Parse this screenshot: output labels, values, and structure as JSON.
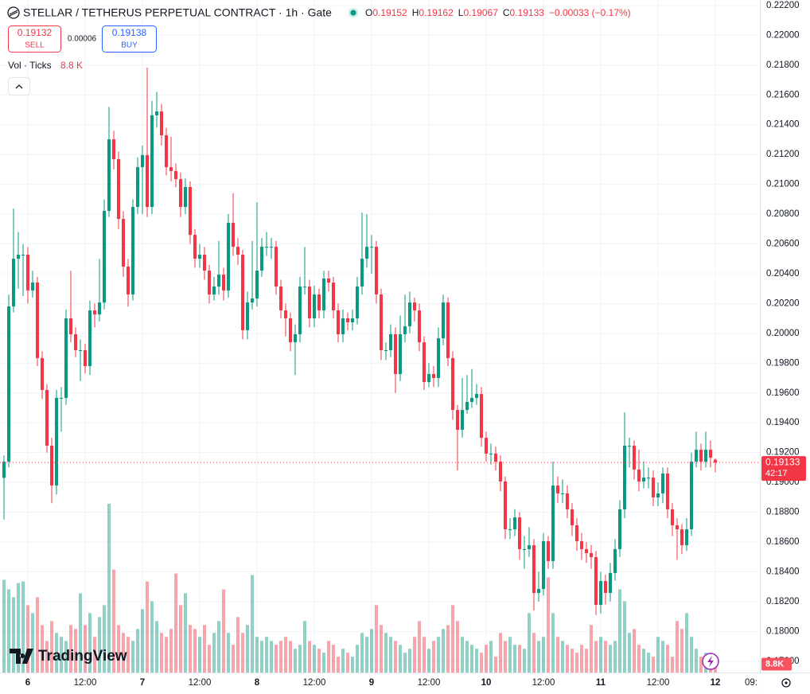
{
  "header": {
    "symbol": "STELLAR / TETHERUS PERPETUAL CONTRACT · 1h · Gate",
    "ohlc": [
      {
        "key": "O",
        "value": "0.19152"
      },
      {
        "key": "H",
        "value": "0.19162"
      },
      {
        "key": "L",
        "value": "0.19067"
      },
      {
        "key": "C",
        "value": "0.19133"
      }
    ],
    "change": "−0.00033 (−0.17%)"
  },
  "trade": {
    "sell_price": "0.19132",
    "sell_label": "SELL",
    "spread": "0.00006",
    "buy_price": "0.19138",
    "buy_label": "BUY"
  },
  "volume_legend": {
    "label": "Vol · Ticks",
    "value": "8.8 K"
  },
  "branding": "TradingView",
  "chart_data": {
    "type": "candlestick",
    "categories": [
      null,
      null,
      null,
      null,
      null,
      "6",
      null,
      null,
      null,
      null,
      null,
      null,
      null,
      null,
      null,
      null,
      null,
      "12:00",
      null,
      null,
      null,
      null,
      null,
      null,
      null,
      null,
      null,
      null,
      null,
      "7",
      null,
      null,
      null,
      null,
      null,
      null,
      null,
      null,
      null,
      null,
      null,
      "12:00",
      null,
      null,
      null,
      null,
      null,
      null,
      null,
      null,
      null,
      null,
      null,
      "8",
      null,
      null,
      null,
      null,
      null,
      null,
      null,
      null,
      null,
      null,
      null,
      "12:00",
      null,
      null,
      null,
      null,
      null,
      null,
      null,
      null,
      null,
      null,
      null,
      "9",
      null,
      null,
      null,
      null,
      null,
      null,
      null,
      null,
      null,
      null,
      null,
      "12:00",
      null,
      null,
      null,
      null,
      null,
      null,
      null,
      null,
      null,
      null,
      null,
      "10",
      null,
      null,
      null,
      null,
      null,
      null,
      null,
      null,
      null,
      null,
      null,
      "12:00",
      null,
      null,
      null,
      null,
      null,
      null,
      null,
      null,
      null,
      null,
      null,
      "11",
      null,
      null,
      null,
      null,
      null,
      null,
      null,
      null,
      null,
      null,
      null,
      "12:00",
      null,
      null,
      null,
      null,
      null,
      null,
      null,
      null,
      null,
      null,
      null,
      "12"
    ],
    "open": [
      0.1903,
      0.19139,
      0.20181,
      0.20501,
      0.20528,
      0.20528,
      0.20288,
      0.20341,
      0.19834,
      0.1962,
      0.19246,
      0.18979,
      0.19567,
      0.19567,
      0.20101,
      0.19994,
      0.19887,
      0.19887,
      0.1978,
      0.20154,
      0.20127,
      0.20207,
      0.20822,
      0.21302,
      0.21169,
      0.20768,
      0.20448,
      0.20261,
      0.20848,
      0.21115,
      0.21196,
      0.20848,
      0.21463,
      0.21489,
      0.21329,
      0.21115,
      0.21089,
      0.21035,
      0.20848,
      0.20982,
      0.20661,
      0.20501,
      0.20528,
      0.20421,
      0.20261,
      0.20314,
      0.20394,
      0.20288,
      0.20742,
      0.20581,
      0.20528,
      0.20021,
      0.20207,
      0.20234,
      0.20421,
      0.20581,
      0.20581,
      0.20581,
      0.20314,
      0.20154,
      0.20101,
      0.1994,
      0.19994,
      0.20314,
      0.20314,
      0.20101,
      0.20261,
      0.20154,
      0.20368,
      0.20341,
      0.20154,
      0.19994,
      0.20101,
      0.20074,
      0.20101,
      0.20314,
      0.20501,
      0.20581,
      0.20581,
      0.20261,
      0.19887,
      0.19887,
      0.19994,
      0.19727,
      0.19994,
      0.20047,
      0.20207,
      0.20154,
      0.1994,
      0.19673,
      0.19727,
      0.197,
      0.19967,
      0.20207,
      0.19834,
      0.19486,
      0.19353,
      0.19486,
      0.1954,
      0.19567,
      0.19593,
      0.19299,
      0.19193,
      0.19193,
      0.19139,
      0.19006,
      0.18685,
      0.18685,
      0.18765,
      0.18552,
      0.18552,
      0.18578,
      0.18258,
      0.18285,
      0.18605,
      0.18472,
      0.18979,
      0.18926,
      0.18926,
      0.18819,
      0.18712,
      0.18605,
      0.18552,
      0.18525,
      0.18498,
      0.18178,
      0.18338,
      0.18258,
      0.18392,
      0.18552,
      0.18819,
      0.19246,
      0.19246,
      0.19086,
      0.19006,
      0.19032,
      0.19032,
      0.18899,
      0.18926,
      0.19059,
      0.18819,
      0.18712,
      0.18685,
      0.18578,
      0.18685,
      0.19139,
      0.19219,
      0.19139,
      0.19219,
      0.19152
    ],
    "high": [
      0.1918,
      0.2026,
      0.20838,
      0.2068,
      0.206,
      0.2058,
      0.2042,
      0.2038,
      0.1988,
      0.1966,
      0.193,
      0.1962,
      0.1964,
      0.2016,
      0.2042,
      0.2004,
      0.1996,
      0.1993,
      0.2022,
      0.202,
      0.205,
      0.209,
      0.2152,
      0.2136,
      0.2122,
      0.2082,
      0.205,
      0.209,
      0.2118,
      0.2126,
      0.21783,
      0.2156,
      0.2162,
      0.2154,
      0.2138,
      0.2132,
      0.2114,
      0.2108,
      0.2104,
      0.2102,
      0.207,
      0.206,
      0.2058,
      0.2046,
      0.2038,
      0.2062,
      0.2044,
      0.208,
      0.2094,
      0.2064,
      0.2056,
      0.2028,
      0.2062,
      0.2088,
      0.2064,
      0.2068,
      0.2064,
      0.2062,
      0.2036,
      0.202,
      0.2014,
      0.2006,
      0.2038,
      0.2058,
      0.2036,
      0.2032,
      0.203,
      0.2042,
      0.2042,
      0.2038,
      0.202,
      0.2016,
      0.2014,
      0.2016,
      0.2038,
      0.2081,
      0.208,
      0.2066,
      0.2062,
      0.203,
      0.1994,
      0.2006,
      0.2004,
      0.2012,
      0.2026,
      0.2028,
      0.2024,
      0.202,
      0.1998,
      0.198,
      0.1978,
      0.2004,
      0.2026,
      0.2024,
      0.1988,
      0.1952,
      0.197,
      0.1972,
      0.1976,
      0.1966,
      0.1964,
      0.1934,
      0.1926,
      0.1924,
      0.1918,
      0.1904,
      0.1876,
      0.1882,
      0.188,
      0.1864,
      0.187,
      0.1862,
      0.184,
      0.1866,
      0.1864,
      0.1914,
      0.1904,
      0.1902,
      0.1898,
      0.1886,
      0.1876,
      0.1866,
      0.186,
      0.1858,
      0.1854,
      0.184,
      0.1838,
      0.1846,
      0.1862,
      0.1888,
      0.1947,
      0.193,
      0.1928,
      0.1922,
      0.1914,
      0.191,
      0.1908,
      0.19,
      0.191,
      0.191,
      0.1886,
      0.1876,
      0.1872,
      0.1876,
      0.192,
      0.1934,
      0.1926,
      0.1934,
      0.1928,
      0.19162
    ],
    "low": [
      0.1875,
      0.191,
      0.2014,
      0.203,
      0.2025,
      0.202,
      0.2024,
      0.1978,
      0.1956,
      0.192,
      0.1886,
      0.1892,
      0.1934,
      0.1952,
      0.1994,
      0.1984,
      0.1968,
      0.1973,
      0.1972,
      0.2004,
      0.2008,
      0.2016,
      0.2078,
      0.211,
      0.207,
      0.2038,
      0.2018,
      0.2022,
      0.208,
      0.208,
      0.2078,
      0.208,
      0.2138,
      0.2126,
      0.2106,
      0.2102,
      0.2098,
      0.2078,
      0.208,
      0.206,
      0.2044,
      0.2044,
      0.2036,
      0.202,
      0.2022,
      0.2026,
      0.2022,
      0.2024,
      0.2052,
      0.2046,
      0.1996,
      0.1996,
      0.2016,
      0.2018,
      0.2038,
      0.2052,
      0.205,
      0.2026,
      0.201,
      0.1998,
      0.1988,
      0.1972,
      0.1994,
      0.2026,
      0.2004,
      0.2004,
      0.201,
      0.201,
      0.2028,
      0.201,
      0.1994,
      0.1994,
      0.2002,
      0.2002,
      0.2006,
      0.2026,
      0.2044,
      0.204,
      0.202,
      0.1982,
      0.1982,
      0.1984,
      0.196,
      0.1968,
      0.1994,
      0.2,
      0.2008,
      0.1988,
      0.1962,
      0.1964,
      0.1964,
      0.1964,
      0.1992,
      0.1978,
      0.1942,
      0.1908,
      0.193,
      0.1946,
      0.195,
      0.1952,
      0.1924,
      0.1914,
      0.1912,
      0.1908,
      0.1894,
      0.1862,
      0.1862,
      0.1864,
      0.1848,
      0.1842,
      0.185,
      0.1814,
      0.182,
      0.1824,
      0.1842,
      0.1842,
      0.1886,
      0.1886,
      0.1876,
      0.1864,
      0.1854,
      0.1848,
      0.1846,
      0.1842,
      0.1811,
      0.1812,
      0.1818,
      0.182,
      0.1834,
      0.185,
      0.1876,
      0.191,
      0.1902,
      0.1894,
      0.1896,
      0.1896,
      0.1884,
      0.1884,
      0.1886,
      0.1876,
      0.1864,
      0.1848,
      0.1852,
      0.1854,
      0.1864,
      0.191,
      0.1908,
      0.191,
      0.191,
      0.19067
    ],
    "close": [
      0.19139,
      0.20181,
      0.20501,
      0.20528,
      0.20528,
      0.20288,
      0.20341,
      0.19834,
      0.1962,
      0.19246,
      0.18979,
      0.19567,
      0.19567,
      0.20101,
      0.19994,
      0.19887,
      0.19887,
      0.1978,
      0.20154,
      0.20127,
      0.20207,
      0.20822,
      0.21302,
      0.21169,
      0.20768,
      0.20448,
      0.20261,
      0.20848,
      0.21115,
      0.21196,
      0.20848,
      0.21463,
      0.21489,
      0.21329,
      0.21115,
      0.21089,
      0.21035,
      0.20848,
      0.20982,
      0.20661,
      0.20501,
      0.20528,
      0.20421,
      0.20261,
      0.20314,
      0.20394,
      0.20288,
      0.20742,
      0.20581,
      0.20528,
      0.20021,
      0.20207,
      0.20234,
      0.20421,
      0.20581,
      0.20581,
      0.20581,
      0.20314,
      0.20154,
      0.20101,
      0.1994,
      0.19994,
      0.20314,
      0.20314,
      0.20101,
      0.20261,
      0.20154,
      0.20368,
      0.20341,
      0.20154,
      0.19994,
      0.20101,
      0.20074,
      0.20101,
      0.20314,
      0.20501,
      0.20581,
      0.20581,
      0.20261,
      0.19887,
      0.19887,
      0.19994,
      0.19727,
      0.19994,
      0.20047,
      0.20207,
      0.20154,
      0.1994,
      0.19673,
      0.19727,
      0.197,
      0.19967,
      0.20207,
      0.19834,
      0.19486,
      0.19353,
      0.19486,
      0.1954,
      0.19567,
      0.19593,
      0.19299,
      0.19193,
      0.19193,
      0.19139,
      0.19006,
      0.18685,
      0.18685,
      0.18765,
      0.18552,
      0.18552,
      0.18578,
      0.18258,
      0.18285,
      0.18605,
      0.18472,
      0.18979,
      0.18926,
      0.18926,
      0.18819,
      0.18712,
      0.18605,
      0.18552,
      0.18525,
      0.18498,
      0.18178,
      0.18338,
      0.18258,
      0.18392,
      0.18552,
      0.18819,
      0.19246,
      0.19246,
      0.19086,
      0.19006,
      0.19032,
      0.19032,
      0.18899,
      0.18926,
      0.19059,
      0.18819,
      0.18712,
      0.18685,
      0.18578,
      0.18685,
      0.19139,
      0.19219,
      0.19139,
      0.19219,
      0.19166,
      0.19133
    ],
    "volume": [
      58500,
      52500,
      47500,
      56500,
      57500,
      42500,
      37500,
      47500,
      30000,
      20000,
      32500,
      25000,
      22500,
      20000,
      30000,
      27500,
      50000,
      30000,
      37500,
      22500,
      35000,
      42500,
      106500,
      65000,
      30000,
      25000,
      22500,
      20000,
      27500,
      40000,
      57500,
      45000,
      32500,
      25000,
      22500,
      27500,
      62500,
      42500,
      50000,
      30000,
      27500,
      22500,
      30000,
      17500,
      25000,
      32500,
      52500,
      25000,
      17500,
      35000,
      25000,
      30000,
      61500,
      22500,
      20000,
      22500,
      20000,
      17500,
      20000,
      22500,
      20000,
      15000,
      17500,
      32500,
      20000,
      17500,
      15000,
      12500,
      20000,
      17500,
      10000,
      15000,
      12500,
      10000,
      17500,
      25000,
      22500,
      27500,
      42500,
      30000,
      25000,
      22500,
      20000,
      17500,
      12500,
      15000,
      22500,
      32500,
      22500,
      15000,
      20000,
      22500,
      27500,
      30000,
      42500,
      32500,
      22500,
      20000,
      17500,
      15000,
      12500,
      17500,
      20000,
      10000,
      25000,
      20000,
      22500,
      17500,
      17500,
      15000,
      37500,
      25000,
      20000,
      22500,
      60000,
      37500,
      22500,
      20000,
      17500,
      15000,
      12500,
      17500,
      15000,
      30000,
      20000,
      22500,
      20000,
      17500,
      20000,
      52500,
      45000,
      25000,
      27500,
      17500,
      15000,
      12500,
      10000,
      22500,
      20000,
      17500,
      10000,
      32500,
      27500,
      37500,
      22500,
      15000,
      10000,
      12500,
      7500,
      8800
    ],
    "up_color": "#089981",
    "down_color": "#f23645",
    "ylim": [
      0.17724,
      0.22237
    ],
    "yticks": [
      {
        "value": 0.222,
        "label": "0.22200"
      },
      {
        "value": 0.22,
        "label": "0.22000"
      },
      {
        "value": 0.218,
        "label": "0.21800"
      },
      {
        "value": 0.216,
        "label": "0.21600"
      },
      {
        "value": 0.214,
        "label": "0.21400"
      },
      {
        "value": 0.212,
        "label": "0.21200"
      },
      {
        "value": 0.21,
        "label": "0.21000"
      },
      {
        "value": 0.208,
        "label": "0.20800"
      },
      {
        "value": 0.206,
        "label": "0.20600"
      },
      {
        "value": 0.204,
        "label": "0.20400"
      },
      {
        "value": 0.202,
        "label": "0.20200"
      },
      {
        "value": 0.2,
        "label": "0.20000"
      },
      {
        "value": 0.198,
        "label": "0.19800"
      },
      {
        "value": 0.196,
        "label": "0.19600"
      },
      {
        "value": 0.194,
        "label": "0.19400"
      },
      {
        "value": 0.192,
        "label": "0.19200"
      },
      {
        "value": 0.19,
        "label": "0.19000"
      },
      {
        "value": 0.188,
        "label": "0.18800"
      },
      {
        "value": 0.186,
        "label": "0.18600"
      },
      {
        "value": 0.184,
        "label": "0.18400"
      },
      {
        "value": 0.182,
        "label": "0.18200"
      },
      {
        "value": 0.18,
        "label": "0.18000"
      },
      {
        "value": 0.178,
        "label": "0.17800"
      }
    ],
    "volume_ylim": [
      0,
      107000
    ],
    "grid": true,
    "last_price": {
      "label": "0.19133",
      "countdown": "42:17"
    },
    "last_volume_label": "8.8K",
    "x_future_labels": [
      "09:"
    ]
  }
}
